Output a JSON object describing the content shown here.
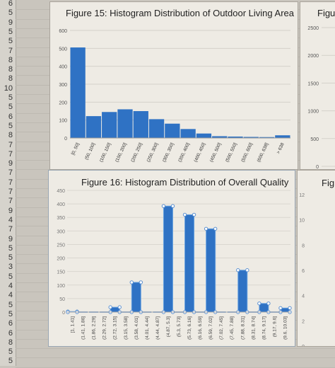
{
  "row_numbers": [
    "6",
    "5",
    "9",
    "5",
    "5",
    "7",
    "8",
    "8",
    "8",
    "10",
    "5",
    "5",
    "6",
    "5",
    "8",
    "7",
    "7",
    "9",
    "7",
    "7",
    "7",
    "7",
    "9",
    "4",
    "7",
    "9",
    "5",
    "5",
    "3",
    "5",
    "4",
    "4",
    "5",
    "5",
    "6",
    "6",
    "8",
    "5",
    "5"
  ],
  "chart_data": [
    {
      "type": "bar",
      "title": "Figure 15: Histogram Distribution of Outdoor Living Area",
      "categories": [
        "[0, 50]",
        "(50, 100]",
        "(100, 150]",
        "(150, 200]",
        "(200, 250]",
        "(250, 300]",
        "(300, 350]",
        "(350, 400]",
        "(400, 450]",
        "(450, 500]",
        "(500, 550]",
        "(550, 600]",
        "(600, 638]",
        "> 638"
      ],
      "values": [
        505,
        122,
        145,
        160,
        150,
        105,
        80,
        50,
        25,
        10,
        8,
        6,
        5,
        15
      ],
      "ylim": [
        0,
        600
      ],
      "yticks": [
        0,
        100,
        200,
        300,
        400,
        500,
        600
      ],
      "color": "#2f72c4"
    },
    {
      "type": "bar",
      "title": "Figure 16: Histogram Distribution of Overall Quality",
      "categories": [
        "[1, 1.41]",
        "(1.41, 1.86]",
        "(1.86, 2.29]",
        "(2.29, 2.72]",
        "(2.72, 3.15]",
        "(3.15, 3.58]",
        "(3.58, 4.01]",
        "(4.01, 4.44]",
        "(4.44, 4.87]",
        "(4.87, 5.3]",
        "(5.3, 5.73]",
        "(5.73, 6.16]",
        "(6.16, 6.59]",
        "(6.59, 7.02]",
        "(7.02, 7.45]",
        "(7.45, 7.88]",
        "(7.88, 8.31]",
        "(8.31, 8.74]",
        "(8.74, 9.17]",
        "(9.17, 9.6]",
        "(9.6, 10.03]"
      ],
      "values": [
        2,
        0,
        0,
        0,
        18,
        0,
        110,
        0,
        0,
        392,
        0,
        360,
        0,
        308,
        0,
        0,
        155,
        0,
        32,
        0,
        15
      ],
      "ylim": [
        0,
        450
      ],
      "yticks": [
        0,
        50,
        100,
        150,
        200,
        250,
        300,
        350,
        400,
        450
      ],
      "color": "#2f72c4"
    },
    {
      "type": "bar",
      "title": "Figur",
      "yticks": [
        0,
        500,
        1000,
        1500,
        2000,
        2500
      ],
      "ylim": [
        0,
        2500
      ]
    },
    {
      "type": "bar",
      "title": "Fig",
      "yticks": [
        0,
        2,
        4,
        6,
        8,
        10,
        12
      ],
      "ylim": [
        0,
        12
      ]
    }
  ]
}
